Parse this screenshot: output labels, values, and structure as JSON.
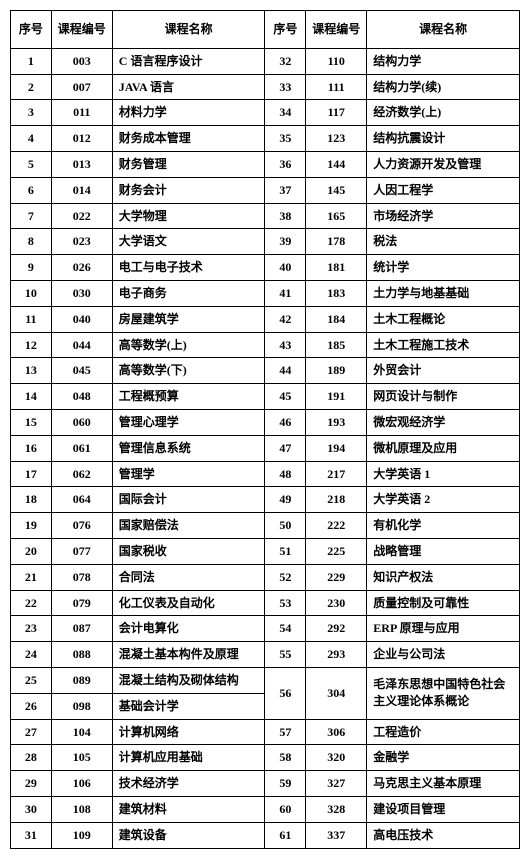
{
  "headers": {
    "seq": "序号",
    "code": "课程编号",
    "name": "课程名称"
  },
  "merges": {
    "24": {
      "seqRowspan": 2,
      "codeRowspan": 2
    },
    "56": {
      "seqRowspan": 2,
      "codeRowspan": 2
    }
  },
  "rows": [
    {
      "l": {
        "seq": "1",
        "code": "003",
        "name": "C 语言程序设计"
      },
      "r": {
        "seq": "32",
        "code": "110",
        "name": "结构力学"
      }
    },
    {
      "l": {
        "seq": "2",
        "code": "007",
        "name": "JAVA 语言"
      },
      "r": {
        "seq": "33",
        "code": "111",
        "name": "结构力学(续)"
      }
    },
    {
      "l": {
        "seq": "3",
        "code": "011",
        "name": "材料力学"
      },
      "r": {
        "seq": "34",
        "code": "117",
        "name": "经济数学(上)"
      }
    },
    {
      "l": {
        "seq": "4",
        "code": "012",
        "name": "财务成本管理"
      },
      "r": {
        "seq": "35",
        "code": "123",
        "name": "结构抗震设计"
      }
    },
    {
      "l": {
        "seq": "5",
        "code": "013",
        "name": "财务管理"
      },
      "r": {
        "seq": "36",
        "code": "144",
        "name": "人力资源开发及管理"
      }
    },
    {
      "l": {
        "seq": "6",
        "code": "014",
        "name": "财务会计"
      },
      "r": {
        "seq": "37",
        "code": "145",
        "name": "人因工程学"
      }
    },
    {
      "l": {
        "seq": "7",
        "code": "022",
        "name": "大学物理"
      },
      "r": {
        "seq": "38",
        "code": "165",
        "name": "市场经济学"
      }
    },
    {
      "l": {
        "seq": "8",
        "code": "023",
        "name": "大学语文"
      },
      "r": {
        "seq": "39",
        "code": "178",
        "name": "税法"
      }
    },
    {
      "l": {
        "seq": "9",
        "code": "026",
        "name": "电工与电子技术"
      },
      "r": {
        "seq": "40",
        "code": "181",
        "name": "统计学"
      }
    },
    {
      "l": {
        "seq": "10",
        "code": "030",
        "name": "电子商务"
      },
      "r": {
        "seq": "41",
        "code": "183",
        "name": "土力学与地基基础"
      }
    },
    {
      "l": {
        "seq": "11",
        "code": "040",
        "name": "房屋建筑学"
      },
      "r": {
        "seq": "42",
        "code": "184",
        "name": "土木工程概论"
      }
    },
    {
      "l": {
        "seq": "12",
        "code": "044",
        "name": "高等数学(上)"
      },
      "r": {
        "seq": "43",
        "code": "185",
        "name": "土木工程施工技术"
      }
    },
    {
      "l": {
        "seq": "13",
        "code": "045",
        "name": "高等数学(下)"
      },
      "r": {
        "seq": "44",
        "code": "189",
        "name": "外贸会计"
      }
    },
    {
      "l": {
        "seq": "14",
        "code": "048",
        "name": "工程概预算"
      },
      "r": {
        "seq": "45",
        "code": "191",
        "name": "网页设计与制作"
      }
    },
    {
      "l": {
        "seq": "15",
        "code": "060",
        "name": "管理心理学"
      },
      "r": {
        "seq": "46",
        "code": "193",
        "name": "微宏观经济学"
      }
    },
    {
      "l": {
        "seq": "16",
        "code": "061",
        "name": "管理信息系统"
      },
      "r": {
        "seq": "47",
        "code": "194",
        "name": "微机原理及应用"
      }
    },
    {
      "l": {
        "seq": "17",
        "code": "062",
        "name": "管理学"
      },
      "r": {
        "seq": "48",
        "code": "217",
        "name": "大学英语 1"
      }
    },
    {
      "l": {
        "seq": "18",
        "code": "064",
        "name": "国际会计"
      },
      "r": {
        "seq": "49",
        "code": "218",
        "name": "大学英语 2"
      }
    },
    {
      "l": {
        "seq": "19",
        "code": "076",
        "name": "国家赔偿法"
      },
      "r": {
        "seq": "50",
        "code": "222",
        "name": "有机化学"
      }
    },
    {
      "l": {
        "seq": "20",
        "code": "077",
        "name": "国家税收"
      },
      "r": {
        "seq": "51",
        "code": "225",
        "name": "战略管理"
      }
    },
    {
      "l": {
        "seq": "21",
        "code": "078",
        "name": "合同法"
      },
      "r": {
        "seq": "52",
        "code": "229",
        "name": "知识产权法"
      }
    },
    {
      "l": {
        "seq": "22",
        "code": "079",
        "name": "化工仪表及自动化"
      },
      "r": {
        "seq": "53",
        "code": "230",
        "name": "质量控制及可靠性"
      }
    },
    {
      "l": {
        "seq": "23",
        "code": "087",
        "name": "会计电算化"
      },
      "r": {
        "seq": "54",
        "code": "292",
        "name": "ERP 原理与应用"
      }
    },
    {
      "l": {
        "seq": "24",
        "code": "088",
        "name": "混凝土基本构件及原理"
      },
      "r": {
        "seq": "55",
        "code": "293",
        "name": "企业与公司法"
      }
    },
    {
      "l": {
        "seq": "25",
        "code": "089",
        "name": "混凝土结构及砌体结构"
      },
      "r": {
        "seq": "56",
        "code": "304",
        "name": "毛泽东思想中国特色社会主义理论体系概论"
      }
    },
    {
      "l": {
        "seq": "26",
        "code": "098",
        "name": "基础会计学"
      },
      "r": null
    },
    {
      "l": {
        "seq": "27",
        "code": "104",
        "name": "计算机网络"
      },
      "r": {
        "seq": "57",
        "code": "306",
        "name": "工程造价"
      }
    },
    {
      "l": {
        "seq": "28",
        "code": "105",
        "name": "计算机应用基础"
      },
      "r": {
        "seq": "58",
        "code": "320",
        "name": "金融学"
      }
    },
    {
      "l": {
        "seq": "29",
        "code": "106",
        "name": "技术经济学"
      },
      "r": {
        "seq": "59",
        "code": "327",
        "name": "马克思主义基本原理"
      }
    },
    {
      "l": {
        "seq": "30",
        "code": "108",
        "name": "建筑材料"
      },
      "r": {
        "seq": "60",
        "code": "328",
        "name": "建设项目管理"
      }
    },
    {
      "l": {
        "seq": "31",
        "code": "109",
        "name": "建筑设备"
      },
      "r": {
        "seq": "61",
        "code": "337",
        "name": "高电压技术"
      }
    }
  ]
}
